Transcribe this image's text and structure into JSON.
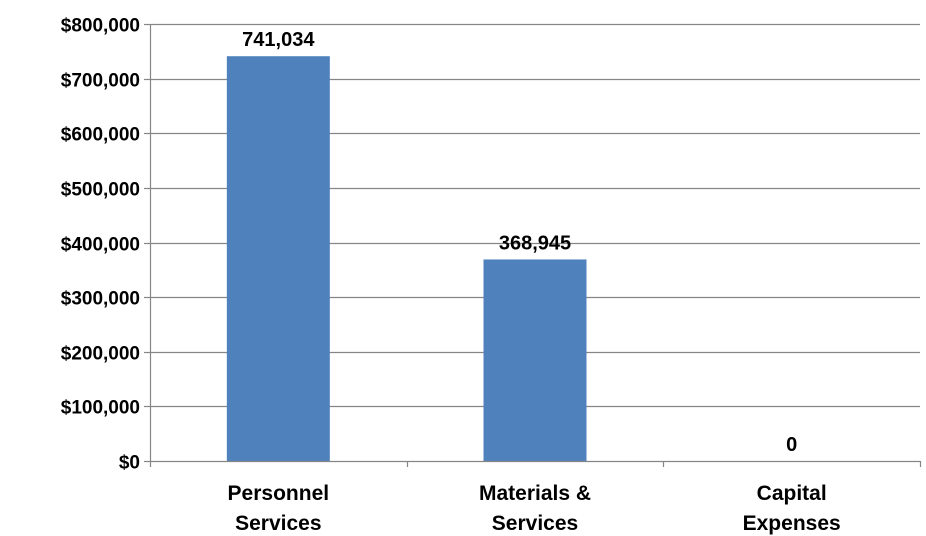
{
  "chart_data": {
    "type": "bar",
    "categories": [
      [
        "Personnel",
        "Services"
      ],
      [
        "Materials &",
        "Services"
      ],
      [
        "Capital",
        "Expenses"
      ]
    ],
    "values": [
      741034,
      368945,
      0
    ],
    "data_labels": [
      "741,034",
      "368,945",
      "0"
    ],
    "ylim": [
      0,
      800000
    ],
    "y_ticks": [
      {
        "value": 0,
        "label": "$0"
      },
      {
        "value": 100000,
        "label": "$100,000"
      },
      {
        "value": 200000,
        "label": "$200,000"
      },
      {
        "value": 300000,
        "label": "$300,000"
      },
      {
        "value": 400000,
        "label": "$400,000"
      },
      {
        "value": 500000,
        "label": "$500,000"
      },
      {
        "value": 600000,
        "label": "$600,000"
      },
      {
        "value": 700000,
        "label": "$700,000"
      },
      {
        "value": 800000,
        "label": "$800,000"
      }
    ],
    "title": "",
    "xlabel": "",
    "ylabel": "",
    "grid": true,
    "legend": "none",
    "bar_color": "#4f81bd",
    "grid_color": "#868686",
    "axis_color": "#868686"
  }
}
